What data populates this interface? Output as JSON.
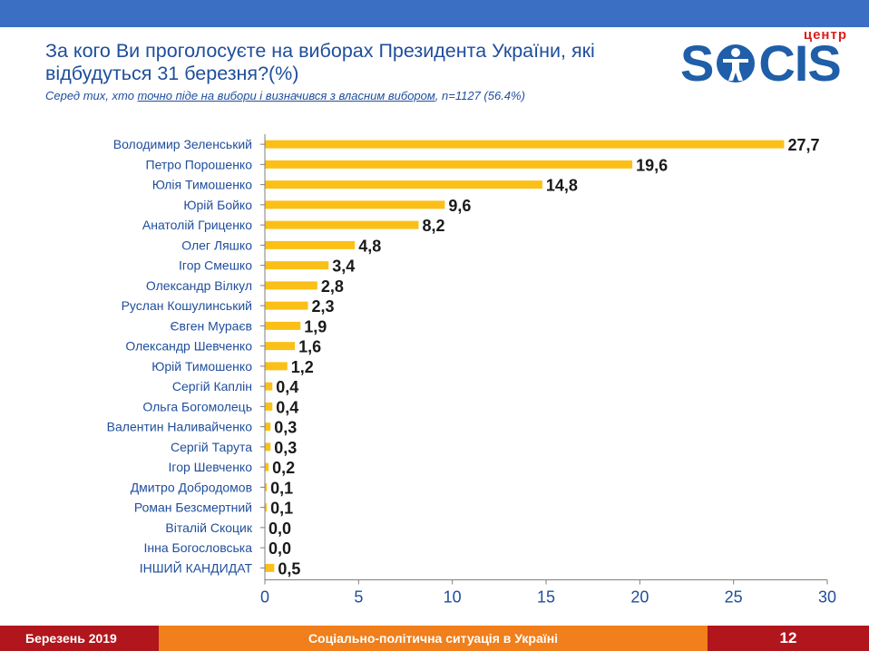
{
  "colors": {
    "top_bar": "#3a6fc3",
    "bar": "#fbc018",
    "title": "#1f4e9c",
    "axis_label": "#1f4e9c",
    "value_label": "#1a1a1a"
  },
  "header": {
    "title": "За кого Ви проголосуєте на виборах Президента України, які відбудуться 31 березня?(%)",
    "subtitle_prefix": "Серед тих, хто ",
    "subtitle_underlined": "точно піде на вибори і визначився з власним вибором",
    "subtitle_suffix": ", n=1127 (56.4%)"
  },
  "logo": {
    "small_text": "центр",
    "word_start": "S",
    "word_end": "CIS"
  },
  "chart_data": {
    "type": "bar",
    "orientation": "horizontal",
    "categories": [
      "Володимир Зеленський",
      "Петро Порошенко",
      "Юлія Тимошенко",
      "Юрій Бойко",
      "Анатолій Гриценко",
      "Олег Ляшко",
      "Ігор Смешко",
      "Олександр Вілкул",
      "Руслан Кошулинський",
      "Євген Мураєв",
      "Олександр Шевченко",
      "Юрій Тимошенко",
      "Сергій Каплін",
      "Ольга Богомолець",
      "Валентин Наливайченко",
      "Сергій Тарута",
      "Ігор Шевченко",
      "Дмитро Добродомов",
      "Роман Безсмертний",
      "Віталій Скоцик",
      "Інна Богословська",
      "ІНШИЙ КАНДИДАТ"
    ],
    "values": [
      27.7,
      19.6,
      14.8,
      9.6,
      8.2,
      4.8,
      3.4,
      2.8,
      2.3,
      1.9,
      1.6,
      1.2,
      0.4,
      0.4,
      0.3,
      0.3,
      0.2,
      0.1,
      0.1,
      0.0,
      0.0,
      0.5
    ],
    "value_labels": [
      "27,7",
      "19,6",
      "14,8",
      "9,6",
      "8,2",
      "4,8",
      "3,4",
      "2,8",
      "2,3",
      "1,9",
      "1,6",
      "1,2",
      "0,4",
      "0,4",
      "0,3",
      "0,3",
      "0,2",
      "0,1",
      "0,1",
      "0,0",
      "0,0",
      "0,5"
    ],
    "xlim": [
      0,
      30
    ],
    "xticks": [
      0,
      5,
      10,
      15,
      20,
      25,
      30
    ],
    "grid": false,
    "legend": "none"
  },
  "footer": {
    "date": "Березень 2019",
    "topic": "Соціально-політична ситуація в Україні",
    "page": "12"
  }
}
